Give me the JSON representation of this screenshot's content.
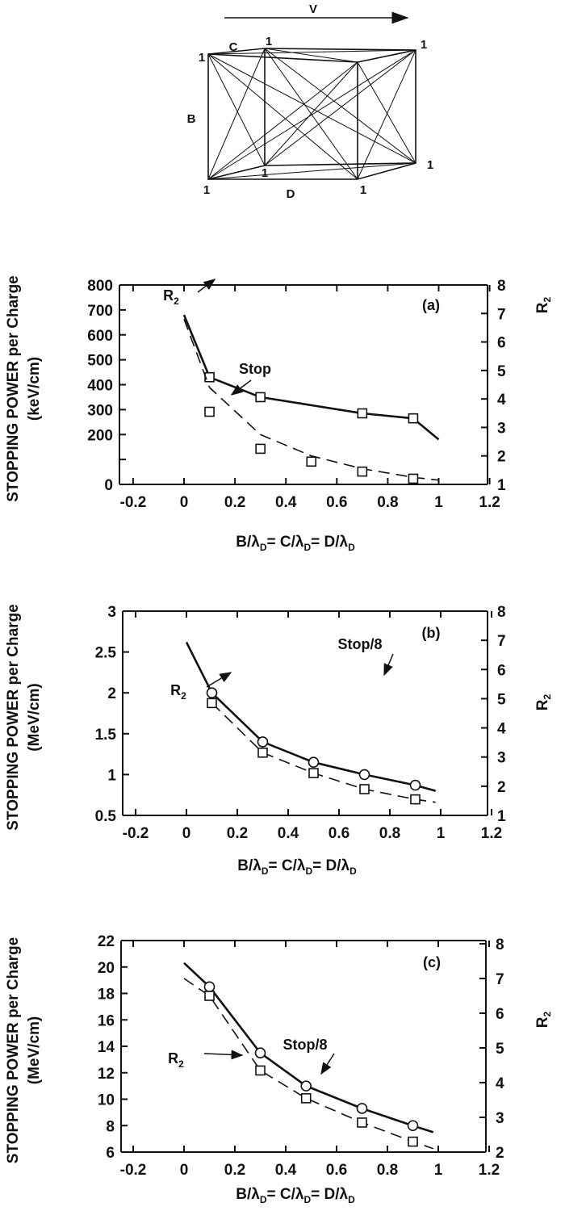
{
  "diagram": {
    "velocity_label": "V",
    "side_labels": [
      "B",
      "C",
      "D"
    ],
    "vertex_charge": "1"
  },
  "chart_data": [
    {
      "type": "line",
      "panel": "(a)",
      "xlabel": "B/λD= C/λD= D/λD",
      "xlabel_parts": [
        "B/λ",
        "D",
        "=   C/λ",
        "D",
        "=  D/λ",
        "D"
      ],
      "ylabel_line1": "STOPPING POWER per Charge",
      "ylabel_line2": "(keV/cm)",
      "y2label": "R",
      "y2label_sub": "2",
      "xlim": [
        -0.2,
        1.2
      ],
      "xticks": [
        -0.2,
        0,
        0.2,
        0.4,
        0.6,
        0.8,
        1,
        1.2
      ],
      "xtick_labels": [
        "-0.2",
        "0",
        "0.2",
        "0.4",
        "0.6",
        "0.8",
        "1",
        "1.2"
      ],
      "ylim": [
        0,
        800
      ],
      "yticks": [
        0,
        100,
        200,
        300,
        400,
        500,
        600,
        700,
        800
      ],
      "ytick_labels": [
        "0",
        "",
        "200",
        "300",
        "400",
        "500",
        "600",
        "700",
        "800"
      ],
      "y2lim": [
        1,
        8
      ],
      "y2ticks": [
        1,
        2,
        3,
        4,
        5,
        6,
        7,
        8
      ],
      "y2tick_labels": [
        "1",
        "2",
        "3",
        "4",
        "5",
        "6",
        "7",
        "8"
      ],
      "series": [
        {
          "label": "Stop",
          "axis": "left",
          "style": "solid",
          "line": [
            [
              0,
              680
            ],
            [
              0.1,
              430
            ],
            [
              0.3,
              350
            ],
            [
              0.7,
              285
            ],
            [
              0.9,
              265
            ],
            [
              1.0,
              180
            ]
          ],
          "markers": [
            [
              0.1,
              430
            ],
            [
              0.3,
              350
            ],
            [
              0.7,
              285
            ],
            [
              0.9,
              265
            ]
          ],
          "marker": "square"
        },
        {
          "label": "R",
          "label_sub": "2",
          "axis": "right",
          "style": "dashed",
          "line": [
            [
              0,
              6.8
            ],
            [
              0.1,
              4.4
            ],
            [
              0.3,
              2.75
            ],
            [
              0.5,
              2.0
            ],
            [
              0.7,
              1.55
            ],
            [
              0.9,
              1.25
            ],
            [
              1.0,
              1.15
            ]
          ],
          "markers": [
            [
              0.1,
              3.55
            ],
            [
              0.3,
              2.25
            ],
            [
              0.5,
              1.8
            ],
            [
              0.7,
              1.45
            ],
            [
              0.9,
              1.2
            ]
          ],
          "marker": "square"
        }
      ]
    },
    {
      "type": "line",
      "panel": "(b)",
      "xlabel": "B/λD= C/λD= D/λD",
      "xlabel_parts": [
        "B/λ",
        "D",
        "=   C/λ",
        "D",
        "=  D/λ",
        "D"
      ],
      "ylabel_line1": "STOPPING POWER per Charge",
      "ylabel_line2": "(MeV/cm)",
      "y2label": "R",
      "y2label_sub": "2",
      "xlim": [
        -0.2,
        1.2
      ],
      "xticks": [
        -0.2,
        0,
        0.2,
        0.4,
        0.6,
        0.8,
        1,
        1.2
      ],
      "xtick_labels": [
        "-0.2",
        "0",
        "0.2",
        "0.4",
        "0.6",
        "0.8",
        "1",
        "1.2"
      ],
      "ylim": [
        0.5,
        3
      ],
      "yticks": [
        0.5,
        1,
        1.5,
        2,
        2.5,
        3
      ],
      "ytick_labels": [
        "0.5",
        "1",
        "1.5",
        "2",
        "2.5",
        "3"
      ],
      "y2lim": [
        1,
        8
      ],
      "y2ticks": [
        1,
        2,
        3,
        4,
        5,
        6,
        7,
        8
      ],
      "y2tick_labels": [
        "1",
        "2",
        "3",
        "4",
        "5",
        "6",
        "7",
        "8"
      ],
      "series": [
        {
          "label": "Stop/8",
          "axis": "left",
          "style": "solid",
          "line": [
            [
              0,
              2.62
            ],
            [
              0.1,
              2.0
            ],
            [
              0.3,
              1.4
            ],
            [
              0.5,
              1.15
            ],
            [
              0.7,
              1.0
            ],
            [
              0.9,
              0.87
            ],
            [
              0.98,
              0.8
            ]
          ],
          "markers": [
            [
              0.1,
              2.0
            ],
            [
              0.3,
              1.4
            ],
            [
              0.5,
              1.15
            ],
            [
              0.7,
              1.0
            ],
            [
              0.9,
              0.87
            ]
          ],
          "marker": "circle"
        },
        {
          "label": "R",
          "label_sub": "2",
          "axis": "right",
          "style": "dashed",
          "line": [
            [
              0.1,
              4.85
            ],
            [
              0.3,
              3.15
            ],
            [
              0.5,
              2.45
            ],
            [
              0.7,
              1.9
            ],
            [
              0.9,
              1.55
            ],
            [
              0.98,
              1.45
            ]
          ],
          "markers": [
            [
              0.1,
              4.85
            ],
            [
              0.3,
              3.15
            ],
            [
              0.5,
              2.45
            ],
            [
              0.7,
              1.9
            ],
            [
              0.9,
              1.55
            ]
          ],
          "marker": "square"
        }
      ]
    },
    {
      "type": "line",
      "panel": "(c)",
      "xlabel": "B/λD= C/λD= D/λD",
      "xlabel_parts": [
        "B/λ",
        "D",
        "=  C/λ",
        "D",
        "=  D/λ",
        "D"
      ],
      "ylabel_line1": "STOPPING POWER per Charge",
      "ylabel_line2": "(MeV/cm)",
      "y2label": "R",
      "y2label_sub": "2",
      "xlim": [
        -0.2,
        1.2
      ],
      "xticks": [
        -0.2,
        0,
        0.2,
        0.4,
        0.6,
        0.8,
        1,
        1.2
      ],
      "xtick_labels": [
        "-0.2",
        "0",
        "0.2",
        "0.4",
        "0.6",
        "0.8",
        "1",
        "1.2"
      ],
      "ylim": [
        6,
        22
      ],
      "yticks": [
        6,
        8,
        10,
        12,
        14,
        16,
        18,
        20,
        22
      ],
      "ytick_labels": [
        "6",
        "8",
        "10",
        "12",
        "14",
        "16",
        "18",
        "20",
        "22"
      ],
      "y2lim": [
        2,
        8
      ],
      "y2ticks": [
        2,
        3,
        4,
        5,
        6,
        7,
        8
      ],
      "y2tick_labels": [
        "2",
        "3",
        "4",
        "5",
        "6",
        "7",
        "8"
      ],
      "series": [
        {
          "label": "Stop/8",
          "axis": "left",
          "style": "solid",
          "line": [
            [
              0,
              20.3
            ],
            [
              0.1,
              18.5
            ],
            [
              0.3,
              13.5
            ],
            [
              0.48,
              11.0
            ],
            [
              0.7,
              9.3
            ],
            [
              0.9,
              8.0
            ],
            [
              0.98,
              7.5
            ]
          ],
          "markers": [
            [
              0.1,
              18.5
            ],
            [
              0.3,
              13.5
            ],
            [
              0.48,
              11.0
            ],
            [
              0.7,
              9.3
            ],
            [
              0.9,
              8.0
            ]
          ],
          "marker": "circle"
        },
        {
          "label": "R",
          "label_sub": "2",
          "axis": "right",
          "style": "dashed",
          "line": [
            [
              0,
              7.0
            ],
            [
              0.1,
              6.5
            ],
            [
              0.3,
              4.35
            ],
            [
              0.48,
              3.55
            ],
            [
              0.7,
              2.85
            ],
            [
              0.9,
              2.3
            ],
            [
              0.98,
              2.1
            ]
          ],
          "markers": [
            [
              0.1,
              6.5
            ],
            [
              0.3,
              4.35
            ],
            [
              0.48,
              3.55
            ],
            [
              0.7,
              2.85
            ],
            [
              0.9,
              2.3
            ]
          ],
          "marker": "square"
        }
      ]
    }
  ]
}
